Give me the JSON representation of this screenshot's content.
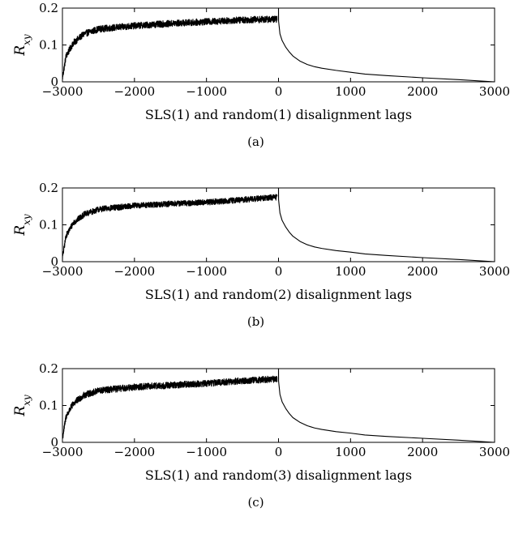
{
  "chart_data": [
    {
      "type": "line",
      "panel_label": "(a)",
      "xlabel": "SLS(1) and random(1) disalignment lags",
      "ylabel_base": "R",
      "ylabel_sub": "xy",
      "xlim": [
        -3000,
        3000
      ],
      "ylim": [
        0,
        0.2
      ],
      "xticks": [
        -3000,
        -2000,
        -1000,
        0,
        1000,
        2000,
        3000
      ],
      "yticks": [
        0,
        0.1,
        0.2
      ],
      "xtick_labels": [
        "−3000",
        "−2000",
        "−1000",
        "0",
        "1000",
        "2000",
        "3000"
      ],
      "ytick_labels": [
        "0",
        "0.1",
        "0.2"
      ],
      "grid": false,
      "negative_lag_trend": {
        "x": [
          -3000,
          -2950,
          -2850,
          -2700,
          -2500,
          -2000,
          -1500,
          -1000,
          -500,
          -20
        ],
        "y": [
          0.01,
          0.07,
          0.105,
          0.13,
          0.143,
          0.152,
          0.158,
          0.163,
          0.168,
          0.17
        ],
        "noise": 0.009
      },
      "series": [
        {
          "x": [
            0,
            1,
            20,
            50,
            100,
            150,
            200,
            300,
            400,
            500,
            600,
            800,
            1000,
            1200,
            1500,
            2000,
            2500,
            3000
          ],
          "y": [
            0.2,
            0.165,
            0.13,
            0.112,
            0.094,
            0.081,
            0.07,
            0.056,
            0.047,
            0.041,
            0.037,
            0.031,
            0.026,
            0.021,
            0.017,
            0.011,
            0.006,
            0.0
          ]
        }
      ]
    },
    {
      "type": "line",
      "panel_label": "(b)",
      "xlabel": "SLS(1) and random(2) disalignment lags",
      "ylabel_base": "R",
      "ylabel_sub": "xy",
      "xlim": [
        -3000,
        3000
      ],
      "ylim": [
        0,
        0.2
      ],
      "xticks": [
        -3000,
        -2000,
        -1000,
        0,
        1000,
        2000,
        3000
      ],
      "yticks": [
        0,
        0.1,
        0.2
      ],
      "xtick_labels": [
        "−3000",
        "−2000",
        "−1000",
        "0",
        "1000",
        "2000",
        "3000"
      ],
      "ytick_labels": [
        "0",
        "0.1",
        "0.2"
      ],
      "grid": false,
      "negative_lag_trend": {
        "x": [
          -3000,
          -2950,
          -2850,
          -2700,
          -2500,
          -2000,
          -1500,
          -1000,
          -500,
          -20
        ],
        "y": [
          0.01,
          0.07,
          0.105,
          0.128,
          0.142,
          0.152,
          0.157,
          0.161,
          0.168,
          0.175
        ],
        "noise": 0.008
      },
      "series": [
        {
          "x": [
            0,
            1,
            20,
            50,
            100,
            150,
            200,
            300,
            400,
            500,
            600,
            800,
            1000,
            1200,
            1500,
            2000,
            2500,
            3000
          ],
          "y": [
            0.2,
            0.168,
            0.132,
            0.112,
            0.094,
            0.08,
            0.069,
            0.055,
            0.046,
            0.04,
            0.036,
            0.03,
            0.026,
            0.021,
            0.017,
            0.011,
            0.006,
            0.0
          ]
        }
      ]
    },
    {
      "type": "line",
      "panel_label": "(c)",
      "xlabel": "SLS(1) and random(3) disalignment lags",
      "ylabel_base": "R",
      "ylabel_sub": "xy",
      "xlim": [
        -3000,
        3000
      ],
      "ylim": [
        0,
        0.2
      ],
      "xticks": [
        -3000,
        -2000,
        -1000,
        0,
        1000,
        2000,
        3000
      ],
      "yticks": [
        0,
        0.1,
        0.2
      ],
      "xtick_labels": [
        "−3000",
        "−2000",
        "−1000",
        "0",
        "1000",
        "2000",
        "3000"
      ],
      "ytick_labels": [
        "0",
        "0.1",
        "0.2"
      ],
      "grid": false,
      "negative_lag_trend": {
        "x": [
          -3000,
          -2950,
          -2850,
          -2700,
          -2500,
          -2000,
          -1500,
          -1000,
          -500,
          -20
        ],
        "y": [
          0.01,
          0.07,
          0.105,
          0.128,
          0.14,
          0.15,
          0.155,
          0.16,
          0.167,
          0.172
        ],
        "noise": 0.009
      },
      "series": [
        {
          "x": [
            0,
            1,
            20,
            50,
            100,
            150,
            200,
            300,
            400,
            500,
            600,
            800,
            1000,
            1200,
            1500,
            2000,
            2500,
            3000
          ],
          "y": [
            0.2,
            0.166,
            0.13,
            0.11,
            0.092,
            0.078,
            0.067,
            0.054,
            0.045,
            0.039,
            0.035,
            0.029,
            0.025,
            0.02,
            0.016,
            0.011,
            0.006,
            0.0
          ]
        }
      ]
    }
  ]
}
